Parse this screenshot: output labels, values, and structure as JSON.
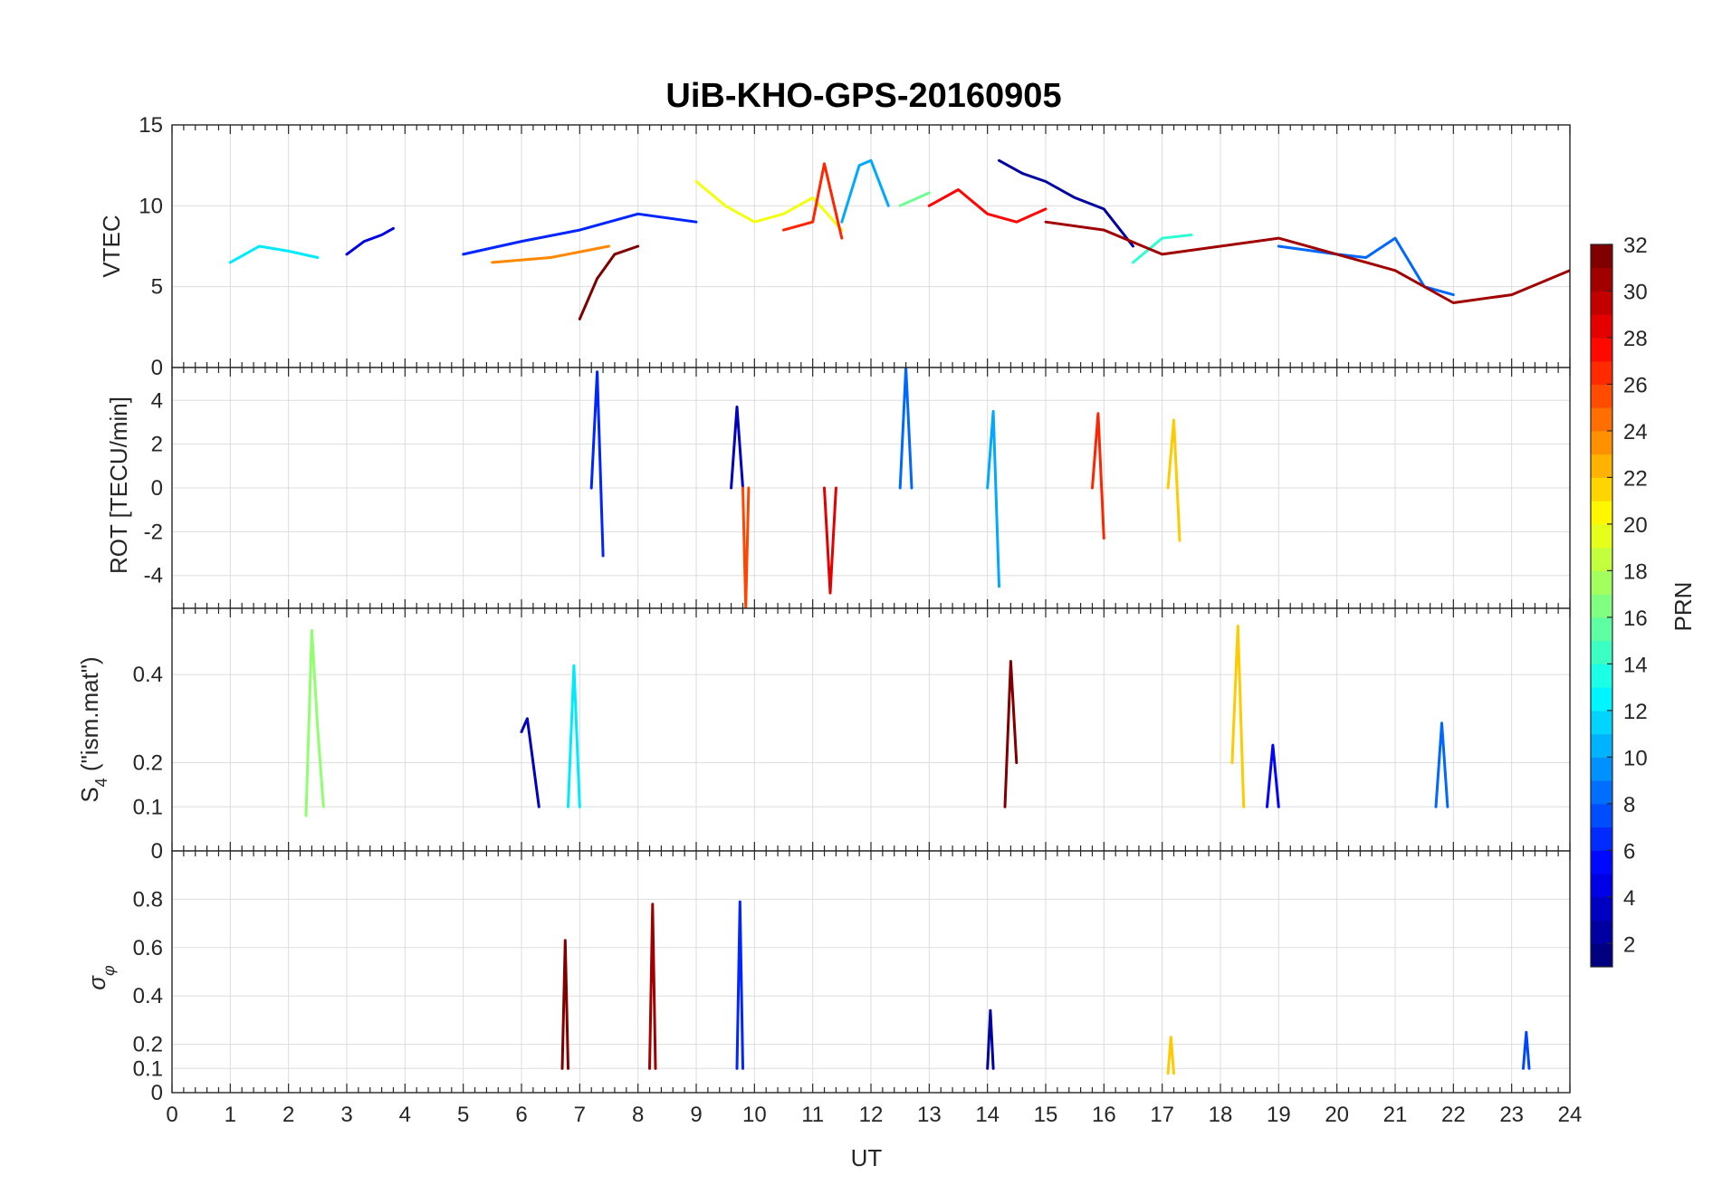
{
  "title": "UiB-KHO-GPS-20160905",
  "x_label": "UT",
  "x_ticks": [
    "0",
    "1",
    "2",
    "3",
    "4",
    "5",
    "6",
    "7",
    "8",
    "9",
    "10",
    "11",
    "12",
    "13",
    "14",
    "15",
    "16",
    "17",
    "18",
    "19",
    "20",
    "21",
    "22",
    "23",
    "24"
  ],
  "colorbar": {
    "label": "PRN",
    "ticks": [
      "2",
      "4",
      "6",
      "8",
      "10",
      "12",
      "14",
      "16",
      "18",
      "20",
      "22",
      "24",
      "26",
      "28",
      "30",
      "32"
    ],
    "colormap": "jet",
    "range": [
      1,
      32
    ]
  },
  "panels": [
    {
      "id": "vtec",
      "ylabel": "VTEC",
      "ylim": [
        0,
        15
      ],
      "yticks": [
        "0",
        "5",
        "10",
        "15"
      ]
    },
    {
      "id": "rot",
      "ylabel": "ROT [TECU/min]",
      "ylim": [
        -5.5,
        5.5
      ],
      "yticks": [
        "-4",
        "-2",
        "0",
        "2",
        "4"
      ]
    },
    {
      "id": "s4",
      "ylabel_main": "S",
      "ylabel_sub": "4",
      "ylabel_rest": " (\"ism.mat\")",
      "ylim": [
        0,
        0.55
      ],
      "yticks": [
        "0",
        "0.1",
        "0.2",
        "0.4"
      ]
    },
    {
      "id": "sigphi",
      "ylabel_main": "σ",
      "ylabel_sub": "φ",
      "ylim": [
        0,
        1
      ],
      "yticks": [
        "0",
        "0.1",
        "0.2",
        "0.4",
        "0.6",
        "0.8"
      ]
    }
  ],
  "chart_data": [
    {
      "type": "line",
      "title": "UiB-KHO-GPS-20160905",
      "xlabel": "UT",
      "ylabel": "VTEC",
      "xlim": [
        0,
        24
      ],
      "ylim": [
        0,
        15
      ],
      "grid": true,
      "series": [
        {
          "prn": 2,
          "x": [
            14.2,
            14.6,
            15.0,
            15.5,
            16.0,
            16.5
          ],
          "values": [
            12.8,
            12.0,
            11.5,
            10.5,
            9.8,
            7.5
          ]
        },
        {
          "prn": 4,
          "x": [
            3.0,
            3.3,
            3.6,
            3.8
          ],
          "values": [
            7.0,
            7.8,
            8.2,
            8.6
          ]
        },
        {
          "prn": 6,
          "x": [
            5.0,
            6.0,
            7.0,
            8.0,
            9.0
          ],
          "values": [
            7.0,
            7.8,
            8.5,
            9.5,
            9.0
          ]
        },
        {
          "prn": 8,
          "x": [
            19.0,
            20.0,
            20.5,
            21.0,
            21.5,
            22.0
          ],
          "values": [
            7.5,
            7.0,
            6.8,
            8.0,
            5.0,
            4.5
          ]
        },
        {
          "prn": 10,
          "x": [
            11.5,
            11.8,
            12.0,
            12.3
          ],
          "values": [
            9.0,
            12.5,
            12.8,
            10.0
          ]
        },
        {
          "prn": 12,
          "x": [
            1.0,
            1.5,
            2.0,
            2.5
          ],
          "values": [
            6.5,
            7.5,
            7.2,
            6.8
          ]
        },
        {
          "prn": 14,
          "x": [
            16.5,
            17.0,
            17.5
          ],
          "values": [
            6.5,
            8.0,
            8.2
          ]
        },
        {
          "prn": 16,
          "x": [
            12.5,
            13.0
          ],
          "values": [
            10.0,
            10.8
          ]
        },
        {
          "prn": 20,
          "x": [
            9.0,
            9.5,
            10.0,
            10.5,
            11.0,
            11.5
          ],
          "values": [
            11.5,
            10.0,
            9.0,
            9.5,
            10.5,
            8.5
          ]
        },
        {
          "prn": 24,
          "x": [
            5.5,
            6.5,
            7.5
          ],
          "values": [
            6.5,
            6.8,
            7.5
          ]
        },
        {
          "prn": 27,
          "x": [
            10.5,
            11.0,
            11.2,
            11.5
          ],
          "values": [
            8.5,
            9.0,
            12.6,
            8.0
          ]
        },
        {
          "prn": 28,
          "x": [
            13.0,
            13.5,
            14.0,
            14.5,
            15.0
          ],
          "values": [
            10.0,
            11.0,
            9.5,
            9.0,
            9.8
          ]
        },
        {
          "prn": 31,
          "x": [
            15.0,
            16.0,
            17.0,
            18.0,
            19.0,
            20.0,
            21.0,
            22.0,
            23.0,
            24.0
          ],
          "values": [
            9.0,
            8.5,
            7.0,
            7.5,
            8.0,
            7.0,
            6.0,
            4.0,
            4.5,
            6.0
          ]
        },
        {
          "prn": 32,
          "x": [
            7.0,
            7.3,
            7.6,
            8.0
          ],
          "values": [
            3.0,
            5.5,
            7.0,
            7.5
          ]
        }
      ]
    },
    {
      "type": "line",
      "xlabel": "UT",
      "ylabel": "ROT [TECU/min]",
      "xlim": [
        0,
        24
      ],
      "ylim": [
        -5.5,
        5.5
      ],
      "grid": true,
      "series": [
        {
          "prn": 6,
          "x": [
            7.2,
            7.3,
            7.4
          ],
          "values": [
            0.0,
            5.3,
            -3.1
          ]
        },
        {
          "prn": 8,
          "x": [
            12.5,
            12.6,
            12.7
          ],
          "values": [
            0.0,
            5.5,
            0.0
          ]
        },
        {
          "prn": 3,
          "x": [
            9.6,
            9.7,
            9.8
          ],
          "values": [
            0.0,
            3.7,
            0.0
          ]
        },
        {
          "prn": 26,
          "x": [
            9.8,
            9.85,
            9.9
          ],
          "values": [
            0.0,
            -5.5,
            0.0
          ]
        },
        {
          "prn": 29,
          "x": [
            11.2,
            11.3,
            11.4
          ],
          "values": [
            0.0,
            -4.8,
            0.0
          ]
        },
        {
          "prn": 27,
          "x": [
            15.8,
            15.9,
            16.0
          ],
          "values": [
            0.0,
            3.4,
            -2.3
          ]
        },
        {
          "prn": 22,
          "x": [
            17.1,
            17.2,
            17.3
          ],
          "values": [
            0.0,
            3.1,
            -2.4
          ]
        },
        {
          "prn": 10,
          "x": [
            14.0,
            14.1,
            14.2
          ],
          "values": [
            0.0,
            3.5,
            -4.5
          ]
        }
      ]
    },
    {
      "type": "line",
      "xlabel": "UT",
      "ylabel": "S4 (\"ism.mat\")",
      "xlim": [
        0,
        24
      ],
      "ylim": [
        0,
        0.55
      ],
      "grid": true,
      "series": [
        {
          "prn": 17,
          "x": [
            2.3,
            2.4,
            2.5,
            2.6
          ],
          "values": [
            0.08,
            0.5,
            0.28,
            0.1
          ]
        },
        {
          "prn": 12,
          "x": [
            6.8,
            6.9,
            7.0
          ],
          "values": [
            0.1,
            0.42,
            0.1
          ]
        },
        {
          "prn": 3,
          "x": [
            6.0,
            6.1,
            6.3
          ],
          "values": [
            0.27,
            0.3,
            0.1
          ]
        },
        {
          "prn": 32,
          "x": [
            14.3,
            14.4,
            14.5
          ],
          "values": [
            0.1,
            0.43,
            0.2
          ]
        },
        {
          "prn": 22,
          "x": [
            18.2,
            18.3,
            18.4
          ],
          "values": [
            0.2,
            0.51,
            0.1
          ]
        },
        {
          "prn": 8,
          "x": [
            21.7,
            21.8,
            21.9
          ],
          "values": [
            0.1,
            0.29,
            0.1
          ]
        },
        {
          "prn": 5,
          "x": [
            18.8,
            18.9,
            19.0
          ],
          "values": [
            0.1,
            0.24,
            0.1
          ]
        }
      ]
    },
    {
      "type": "line",
      "xlabel": "UT",
      "ylabel": "σφ",
      "xlim": [
        0,
        24
      ],
      "ylim": [
        0,
        1
      ],
      "grid": true,
      "series": [
        {
          "prn": 6,
          "x": [
            9.7,
            9.75,
            9.8
          ],
          "values": [
            0.1,
            0.79,
            0.1
          ]
        },
        {
          "prn": 31,
          "x": [
            8.2,
            8.25,
            8.3
          ],
          "values": [
            0.1,
            0.78,
            0.1
          ]
        },
        {
          "prn": 32,
          "x": [
            6.7,
            6.75,
            6.8
          ],
          "values": [
            0.1,
            0.63,
            0.1
          ]
        },
        {
          "prn": 2,
          "x": [
            14.0,
            14.05,
            14.1
          ],
          "values": [
            0.1,
            0.34,
            0.1
          ]
        },
        {
          "prn": 7,
          "x": [
            23.2,
            23.25,
            23.3
          ],
          "values": [
            0.1,
            0.25,
            0.1
          ]
        },
        {
          "prn": 22,
          "x": [
            17.1,
            17.15,
            17.2
          ],
          "values": [
            0.08,
            0.23,
            0.08
          ]
        }
      ]
    }
  ]
}
